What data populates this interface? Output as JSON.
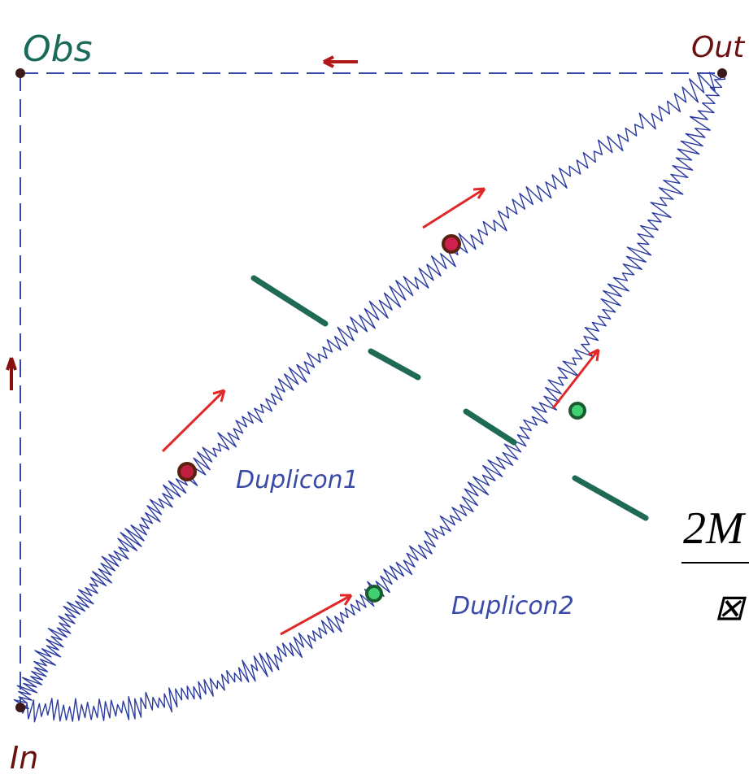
{
  "nodes": [
    {
      "label": "Obs"
    },
    {
      "label": "Out"
    },
    {
      "label": "In"
    }
  ],
  "paths": [
    {
      "label": "Duplicon1"
    },
    {
      "label": "Duplicon2"
    }
  ],
  "formula": {
    "numerator": "2M",
    "denominator": "⊠"
  }
}
